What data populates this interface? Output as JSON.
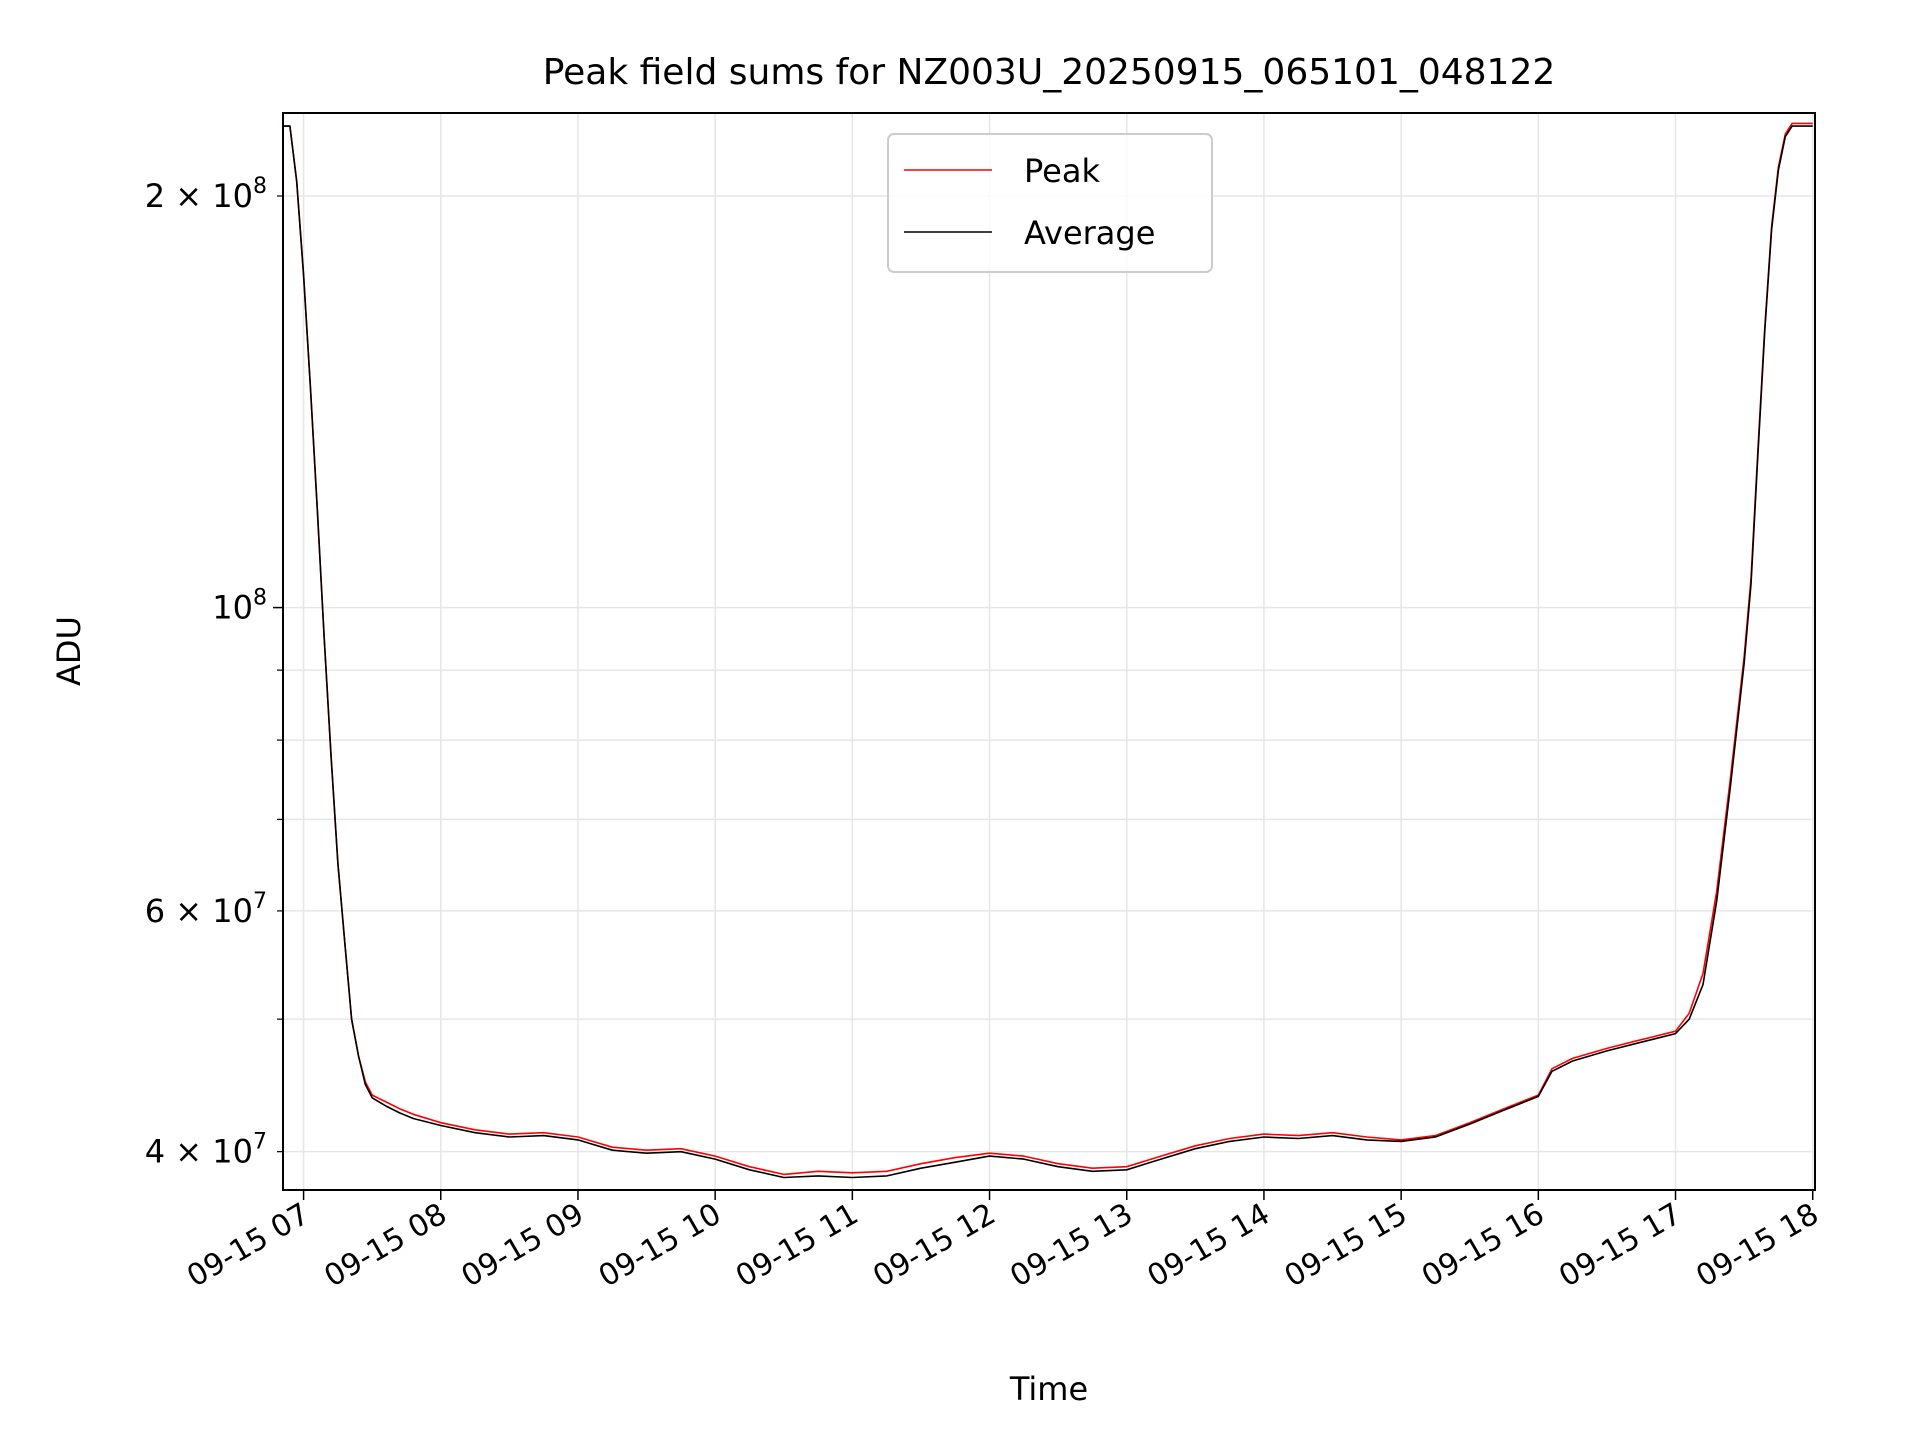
{
  "chart_data": {
    "type": "line",
    "title": "Peak field sums for NZ003U_20250915_065101_048122",
    "xlabel": "Time",
    "ylabel": "ADU",
    "yscale": "log",
    "xlim": [
      "2025-09-15 06:51",
      "2025-09-15 18:01"
    ],
    "ylim": [
      37500000,
      230000000
    ],
    "grid": true,
    "legend_position": "top-center",
    "x_tick_labels": [
      "09-15 07",
      "09-15 08",
      "09-15 09",
      "09-15 10",
      "09-15 11",
      "09-15 12",
      "09-15 13",
      "09-15 14",
      "09-15 15",
      "09-15 16",
      "09-15 17",
      "09-15 18"
    ],
    "y_tick_labels": [
      {
        "value": 200000000,
        "mantissa": "2",
        "exp": "8"
      },
      {
        "value": 100000000,
        "mantissa": "",
        "exp": "8"
      },
      {
        "value": 60000000,
        "mantissa": "6",
        "exp": "7"
      },
      {
        "value": 40000000,
        "mantissa": "4",
        "exp": "7"
      }
    ],
    "x_hours": [
      6.85,
      6.9,
      6.95,
      7.0,
      7.05,
      7.1,
      7.15,
      7.2,
      7.25,
      7.3,
      7.35,
      7.4,
      7.45,
      7.5,
      7.6,
      7.7,
      7.8,
      8.0,
      8.25,
      8.5,
      8.75,
      9.0,
      9.25,
      9.5,
      9.75,
      10.0,
      10.25,
      10.5,
      10.75,
      11.0,
      11.25,
      11.5,
      11.75,
      12.0,
      12.25,
      12.5,
      12.75,
      13.0,
      13.25,
      13.5,
      13.75,
      14.0,
      14.25,
      14.5,
      14.75,
      15.0,
      15.25,
      15.5,
      15.75,
      16.0,
      16.1,
      16.25,
      16.5,
      16.75,
      17.0,
      17.1,
      17.2,
      17.3,
      17.4,
      17.5,
      17.55,
      17.6,
      17.65,
      17.7,
      17.75,
      17.8,
      17.85,
      17.9,
      17.95,
      18.0
    ],
    "series": [
      {
        "name": "Peak",
        "color": "#ff0000",
        "values": [
          225000000,
          225000000,
          205000000,
          175000000,
          145000000,
          118000000,
          95000000,
          78000000,
          65000000,
          57000000,
          50000000,
          47000000,
          45000000,
          44000000,
          43500000,
          43000000,
          42600000,
          42000000,
          41500000,
          41200000,
          41300000,
          41000000,
          40300000,
          40100000,
          40200000,
          39700000,
          39000000,
          38500000,
          38700000,
          38600000,
          38700000,
          39200000,
          39600000,
          39900000,
          39700000,
          39200000,
          38900000,
          39000000,
          39700000,
          40400000,
          40900000,
          41200000,
          41100000,
          41300000,
          41000000,
          40800000,
          41100000,
          42000000,
          43000000,
          44000000,
          46000000,
          46800000,
          47600000,
          48300000,
          49000000,
          50500000,
          54000000,
          62000000,
          75000000,
          92000000,
          105000000,
          130000000,
          160000000,
          190000000,
          210000000,
          222000000,
          226000000,
          226000000,
          226000000,
          226000000
        ]
      },
      {
        "name": "Average",
        "color": "#000000",
        "values": [
          225000000,
          225000000,
          205000000,
          175000000,
          145000000,
          118000000,
          95000000,
          78000000,
          65000000,
          57000000,
          50000000,
          47000000,
          44800000,
          43800000,
          43200000,
          42700000,
          42300000,
          41800000,
          41300000,
          41000000,
          41100000,
          40800000,
          40100000,
          39900000,
          40000000,
          39500000,
          38800000,
          38300000,
          38400000,
          38300000,
          38400000,
          38900000,
          39300000,
          39700000,
          39500000,
          39000000,
          38700000,
          38800000,
          39500000,
          40200000,
          40700000,
          41000000,
          40900000,
          41100000,
          40800000,
          40700000,
          41000000,
          41900000,
          42900000,
          43900000,
          45800000,
          46600000,
          47400000,
          48100000,
          48800000,
          50000000,
          53000000,
          61000000,
          74000000,
          91000000,
          104000000,
          129000000,
          159000000,
          189000000,
          209000000,
          221000000,
          225000000,
          225000000,
          225000000,
          225000000
        ]
      }
    ]
  }
}
